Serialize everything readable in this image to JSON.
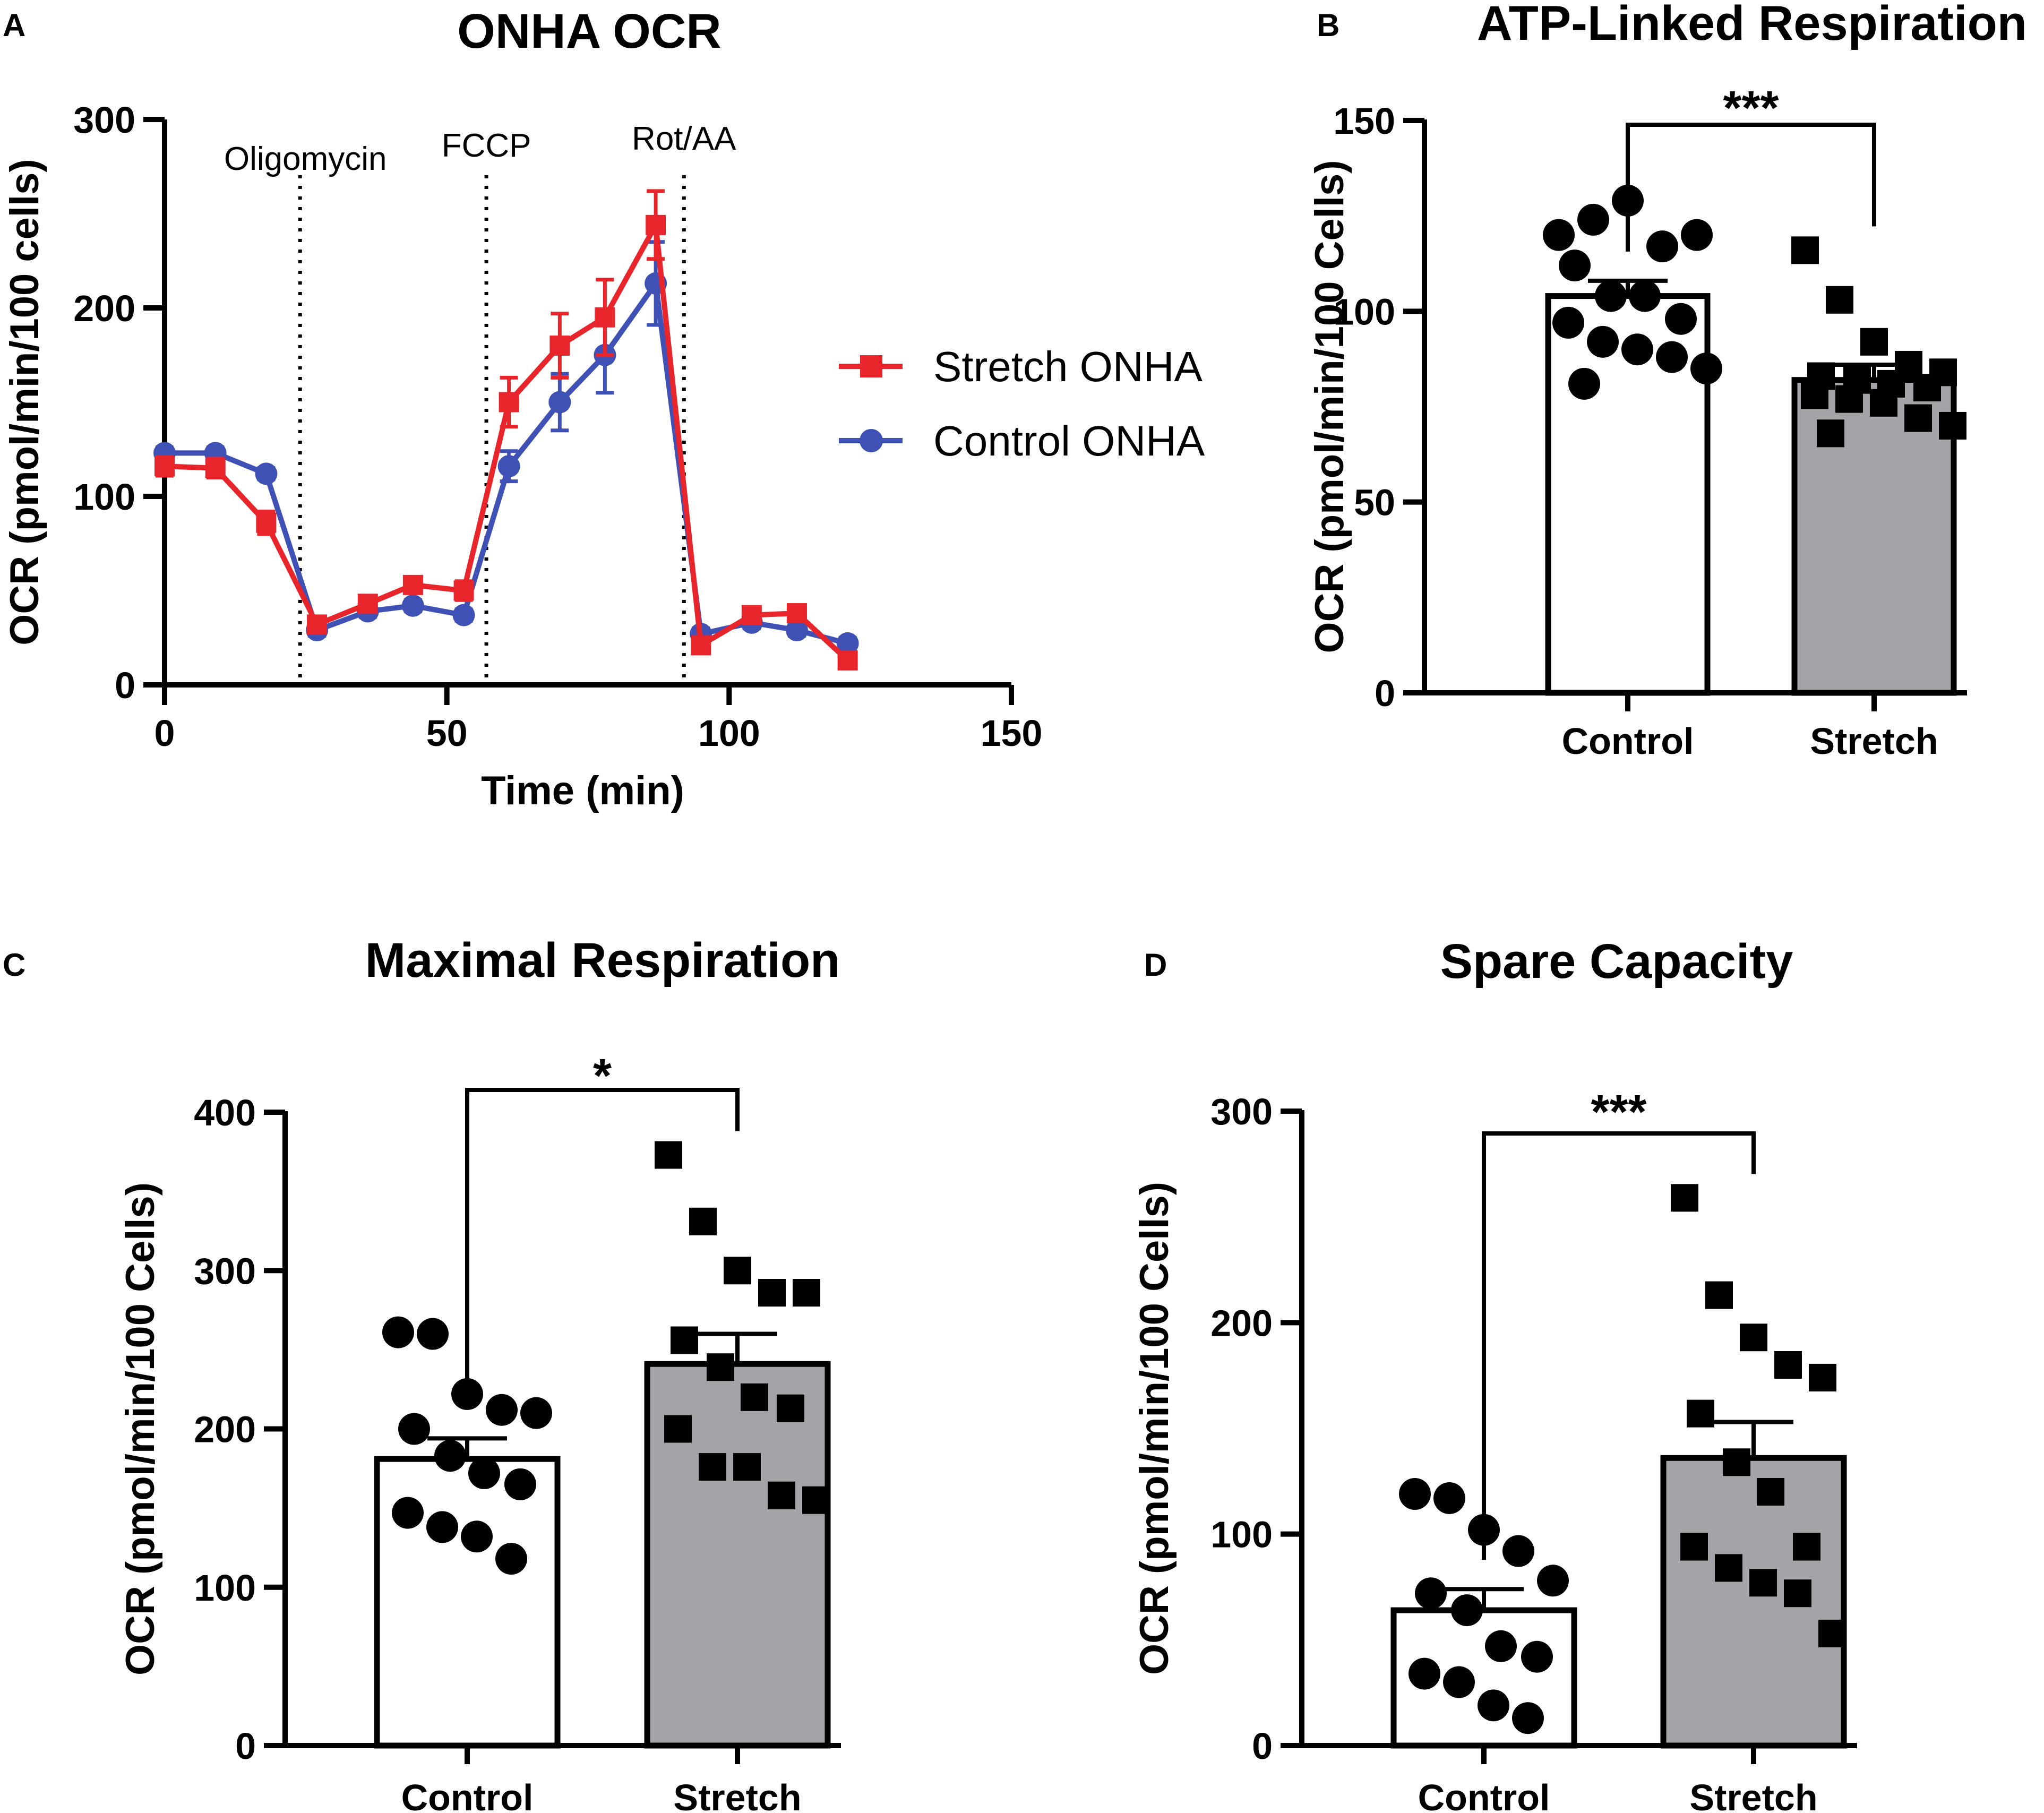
{
  "chart_data": [
    {
      "panel": "A",
      "type": "line",
      "title": "ONHA OCR",
      "xlabel": "Time (min)",
      "ylabel": "OCR (pmol/min/100 cells)",
      "xlim": [
        0,
        150
      ],
      "ylim": [
        0,
        300
      ],
      "xticks": [
        "0",
        "50",
        "100",
        "150"
      ],
      "yticks": [
        "0",
        "100",
        "200",
        "300"
      ],
      "injections": [
        {
          "label": "Oligomycin",
          "x": 24
        },
        {
          "label": "FCCP",
          "x": 57
        },
        {
          "label": "Rot/AA",
          "x": 92
        }
      ],
      "legend": "right",
      "series": [
        {
          "name": "Stretch ONHA",
          "color": "#e8252b",
          "marker": "square",
          "x": [
            0,
            9,
            18,
            27,
            36,
            44,
            53,
            61,
            70,
            78,
            87,
            95,
            104,
            112,
            121
          ],
          "y": [
            116,
            115,
            86,
            32,
            43,
            53,
            50,
            150,
            180,
            195,
            244,
            21,
            37,
            38,
            13
          ],
          "err": [
            5,
            5,
            6,
            4,
            4,
            4,
            5,
            13,
            17,
            20,
            18,
            3,
            4,
            4,
            3
          ]
        },
        {
          "name": "Control ONHA",
          "color": "#3f51b5",
          "marker": "circle",
          "x": [
            0,
            9,
            18,
            27,
            36,
            44,
            53,
            61,
            70,
            78,
            87,
            95,
            104,
            112,
            121
          ],
          "y": [
            123,
            123,
            112,
            29,
            39,
            42,
            37,
            116,
            150,
            175,
            213,
            27,
            33,
            29,
            22
          ],
          "err": [
            3,
            3,
            3,
            3,
            3,
            3,
            3,
            8,
            15,
            20,
            22,
            3,
            3,
            3,
            3
          ]
        }
      ]
    },
    {
      "panel": "B",
      "type": "bar",
      "title": "ATP-Linked Respiration",
      "ylabel": "OCR (pmol/min/100 Cells)",
      "ylim": [
        0,
        150
      ],
      "yticks": [
        "0",
        "50",
        "100",
        "150"
      ],
      "significance": "***",
      "categories": [
        "Control",
        "Stretch"
      ],
      "series": [
        {
          "name": "Control",
          "mean": 104,
          "sem": 4,
          "fill": "#ffffff",
          "marker": "circle",
          "points": [
            120,
            124,
            129,
            117,
            120,
            112,
            104,
            104,
            98,
            97,
            92,
            90,
            88,
            85,
            81
          ]
        },
        {
          "name": "Stretch",
          "mean": 82,
          "sem": 4,
          "fill": "#a3a3a8",
          "marker": "square",
          "points": [
            116,
            103,
            92,
            86,
            84,
            83,
            82,
            81,
            80,
            78,
            77,
            76,
            72,
            70,
            68
          ]
        }
      ]
    },
    {
      "panel": "C",
      "type": "bar",
      "title": "Maximal Respiration",
      "ylabel": "OCR (pmol/min/100 Cells)",
      "ylim": [
        0,
        400
      ],
      "yticks": [
        "0",
        "100",
        "200",
        "300",
        "400"
      ],
      "significance": "*",
      "categories": [
        "Control",
        "Stretch"
      ],
      "series": [
        {
          "name": "Control",
          "mean": 181,
          "sem": 13,
          "fill": "#ffffff",
          "marker": "circle",
          "points": [
            261,
            260,
            222,
            212,
            210,
            200,
            183,
            172,
            165,
            147,
            138,
            132,
            118
          ]
        },
        {
          "name": "Stretch",
          "mean": 241,
          "sem": 19,
          "fill": "#a3a3a8",
          "marker": "square",
          "points": [
            373,
            331,
            300,
            286,
            286,
            256,
            239,
            220,
            213,
            200,
            176,
            176,
            158,
            155
          ]
        }
      ]
    },
    {
      "panel": "D",
      "type": "bar",
      "title": "Spare Capacity",
      "ylabel": "OCR (pmol/min/100 Cells)",
      "ylim": [
        0,
        300
      ],
      "yticks": [
        "0",
        "100",
        "200",
        "300"
      ],
      "significance": "***",
      "categories": [
        "Control",
        "Stretch"
      ],
      "series": [
        {
          "name": "Control",
          "mean": 64,
          "sem": 10,
          "fill": "#ffffff",
          "marker": "circle",
          "points": [
            119,
            117,
            102,
            92,
            78,
            72,
            64,
            47,
            42,
            34,
            30,
            19,
            13
          ]
        },
        {
          "name": "Stretch",
          "mean": 136,
          "sem": 17,
          "fill": "#a3a3a8",
          "marker": "square",
          "points": [
            259,
            213,
            193,
            180,
            174,
            157,
            134,
            120,
            94,
            94,
            84,
            77,
            72,
            53
          ]
        }
      ]
    }
  ],
  "panel_letters": [
    "A",
    "B",
    "C",
    "D"
  ]
}
